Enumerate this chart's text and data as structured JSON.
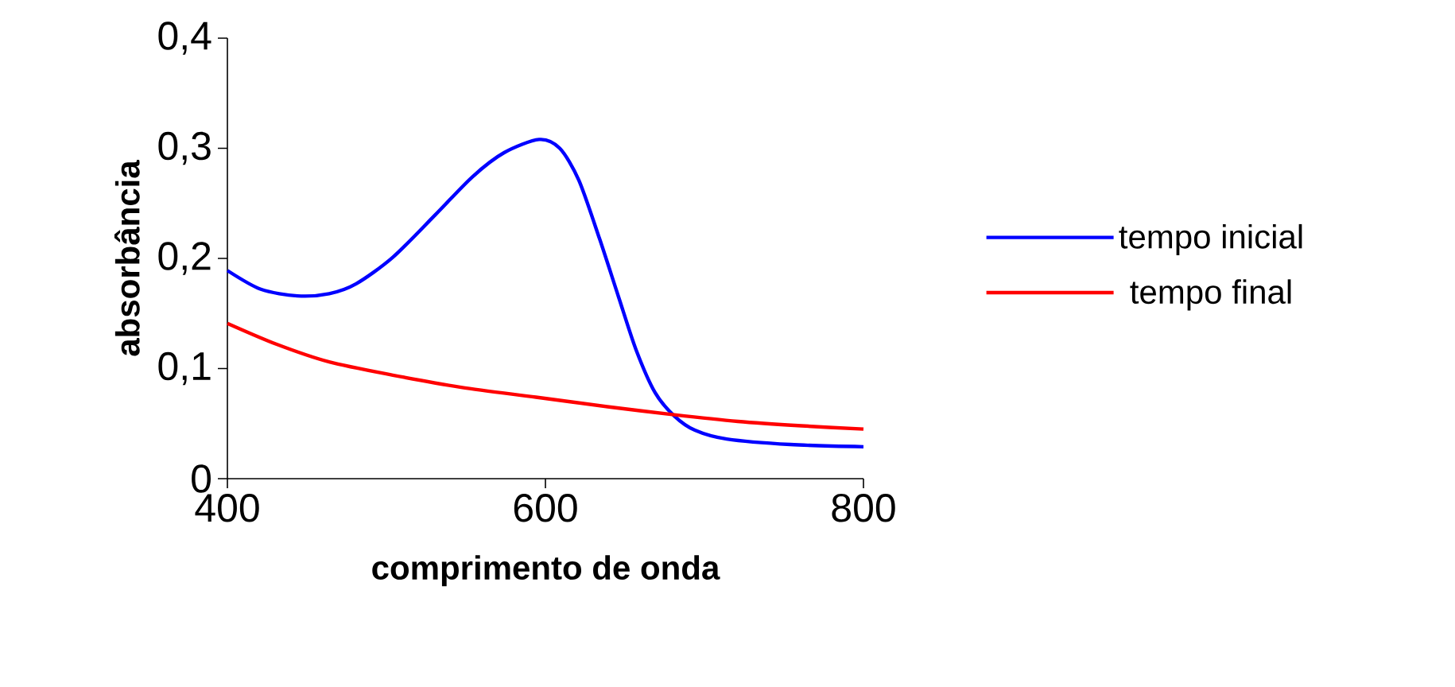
{
  "chart_data": {
    "type": "line",
    "xlabel": "comprimento de onda",
    "ylabel": "absorbância",
    "xlim": [
      400,
      800
    ],
    "xticks": [
      400,
      600,
      800
    ],
    "ylim": [
      0,
      0.4
    ],
    "yticks": [
      0,
      {
        "value": 0.1,
        "label": "0,1"
      },
      {
        "value": 0.2,
        "label": "0,2"
      },
      {
        "value": 0.3,
        "label": "0,3"
      },
      {
        "value": 0.4,
        "label": "0,4"
      }
    ],
    "grid": false,
    "legend": "right",
    "marker": "none",
    "line_style": "solid",
    "series": [
      {
        "name": "tempo inicial",
        "color": "#0000ff",
        "x": [
          400,
          421,
          444,
          464,
          481,
          504,
          531,
          554,
          574,
          596,
          609,
          621,
          634,
          646,
          657,
          669,
          681,
          694,
          714,
          754,
          800
        ],
        "values": [
          0.189,
          0.172,
          0.166,
          0.168,
          0.177,
          0.201,
          0.24,
          0.274,
          0.296,
          0.308,
          0.3,
          0.271,
          0.218,
          0.165,
          0.117,
          0.078,
          0.057,
          0.044,
          0.036,
          0.031,
          0.029
        ]
      },
      {
        "name": "tempo final",
        "color": "#ff0000",
        "x": [
          400,
          431,
          464,
          504,
          547,
          594,
          641,
          681,
          721,
          761,
          800
        ],
        "values": [
          0.141,
          0.122,
          0.106,
          0.094,
          0.083,
          0.074,
          0.065,
          0.058,
          0.052,
          0.048,
          0.045
        ]
      }
    ]
  }
}
